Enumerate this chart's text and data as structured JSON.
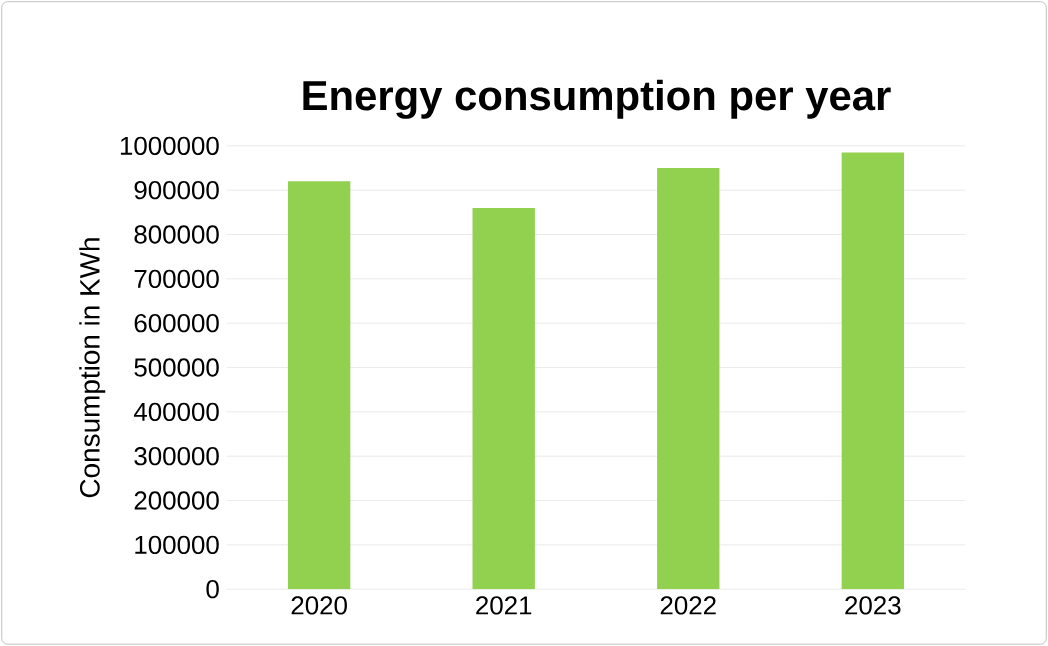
{
  "chart_data": {
    "type": "bar",
    "title": "Energy consumption per year",
    "ylabel": "Consumption in KWh",
    "categories": [
      "2020",
      "2021",
      "2022",
      "2023"
    ],
    "values": [
      920000,
      860000,
      950000,
      985000
    ],
    "color": "#92d050",
    "ylim": [
      0,
      1000000
    ],
    "yticks": [
      0,
      100000,
      200000,
      300000,
      400000,
      500000,
      600000,
      700000,
      800000,
      900000,
      1000000
    ],
    "grid": "y"
  }
}
